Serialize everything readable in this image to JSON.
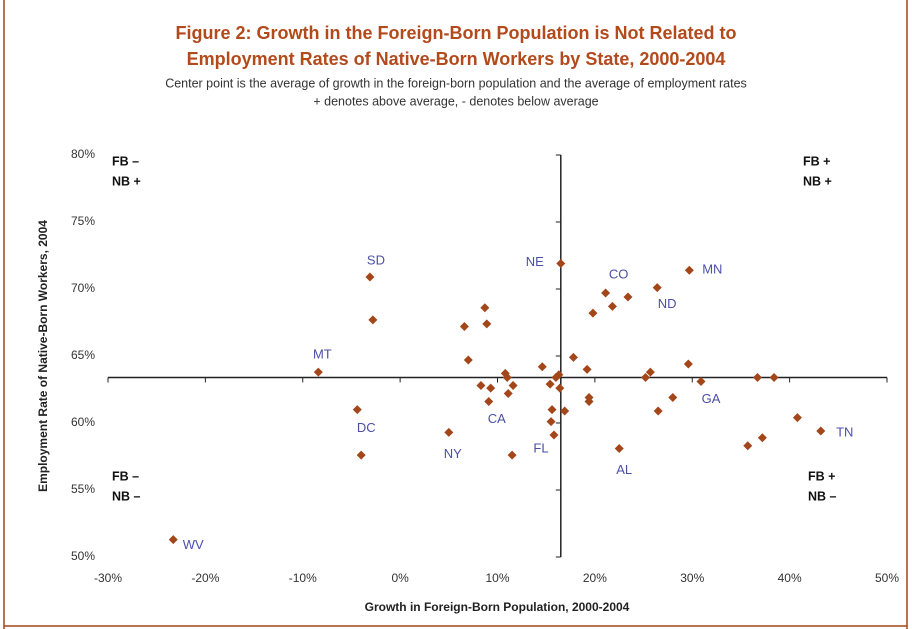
{
  "chart_data": {
    "type": "scatter",
    "title": [
      "Figure 2: Growth in the Foreign-Born Population is Not Related to",
      "Employment Rates of Native-Born Workers by State, 2000-2004"
    ],
    "subtitle": [
      "Center point is the average of growth in the foreign-born population and the average of employment rates",
      "+ denotes above average, - denotes below average"
    ],
    "x_label": "Growth in Foreign-Born Population, 2000-2004",
    "y_label": "Employment Rate of Native-Born Workers, 2004",
    "quadrant_labels": {
      "top_left": [
        "FB –",
        "NB +"
      ],
      "top_right": [
        "FB +",
        "NB +"
      ],
      "bottom_left": [
        "FB –",
        "NB –"
      ],
      "bottom_right": [
        "FB +",
        "NB –"
      ]
    },
    "center_x": 16.5,
    "center_y": 63.4,
    "color": "#a3471b",
    "xlim": [
      -30,
      50
    ],
    "xticks": [
      {
        "value": -30,
        "label": "-30%"
      },
      {
        "value": -20,
        "label": "-20%"
      },
      {
        "value": -10,
        "label": "-10%"
      },
      {
        "value": 0,
        "label": "0%"
      },
      {
        "value": 10,
        "label": "10%"
      },
      {
        "value": 20,
        "label": "20%"
      },
      {
        "value": 30,
        "label": "30%"
      },
      {
        "value": 40,
        "label": "40%"
      },
      {
        "value": 50,
        "label": "50%"
      }
    ],
    "ylim": [
      50,
      80
    ],
    "yticks": [
      {
        "value": 50,
        "label": "50%"
      },
      {
        "value": 55,
        "label": "55%"
      },
      {
        "value": 60,
        "label": "60%"
      },
      {
        "value": 65,
        "label": "65%"
      },
      {
        "value": 70,
        "label": "70%"
      },
      {
        "value": 75,
        "label": "75%"
      },
      {
        "value": 80,
        "label": "80%"
      }
    ],
    "x": [
      -23.3,
      -8.4,
      -3.1,
      -2.8,
      -4.4,
      -4.0,
      5.0,
      6.6,
      7.0,
      8.7,
      8.9,
      8.3,
      9.3,
      9.1,
      10.8,
      11.0,
      11.1,
      11.6,
      11.5,
      14.6,
      15.4,
      16.0,
      15.6,
      15.5,
      15.8,
      16.3,
      16.4,
      16.9,
      16.5,
      17.8,
      19.2,
      19.4,
      19.4,
      19.8,
      21.1,
      21.8,
      23.4,
      22.5,
      25.2,
      25.7,
      26.4,
      26.5,
      28.0,
      29.6,
      29.7,
      30.9,
      35.7,
      36.7,
      37.2,
      38.4,
      40.8,
      43.2
    ],
    "y": [
      51.3,
      63.8,
      70.9,
      67.7,
      61.0,
      57.6,
      59.3,
      67.2,
      64.7,
      68.6,
      67.4,
      62.8,
      62.6,
      61.6,
      63.7,
      63.4,
      62.2,
      62.8,
      57.6,
      64.2,
      62.9,
      63.4,
      61.0,
      60.1,
      59.1,
      63.6,
      62.6,
      60.9,
      71.9,
      64.9,
      64.0,
      61.9,
      61.6,
      68.2,
      69.7,
      68.7,
      69.4,
      58.1,
      63.4,
      63.8,
      70.1,
      60.9,
      61.9,
      64.4,
      71.4,
      63.1,
      58.3,
      63.4,
      58.9,
      63.4,
      60.4,
      59.4
    ],
    "labels": [
      "WV",
      "MT",
      "SD",
      null,
      "DC",
      null,
      "NY",
      null,
      null,
      null,
      null,
      null,
      null,
      "CA",
      null,
      null,
      null,
      null,
      null,
      null,
      null,
      null,
      null,
      null,
      "FL",
      null,
      null,
      null,
      "NE",
      null,
      null,
      null,
      null,
      null,
      "CO",
      null,
      null,
      "AL",
      null,
      null,
      "ND",
      null,
      null,
      null,
      "MN",
      "GA",
      null,
      null,
      null,
      null,
      null,
      "TN"
    ]
  }
}
